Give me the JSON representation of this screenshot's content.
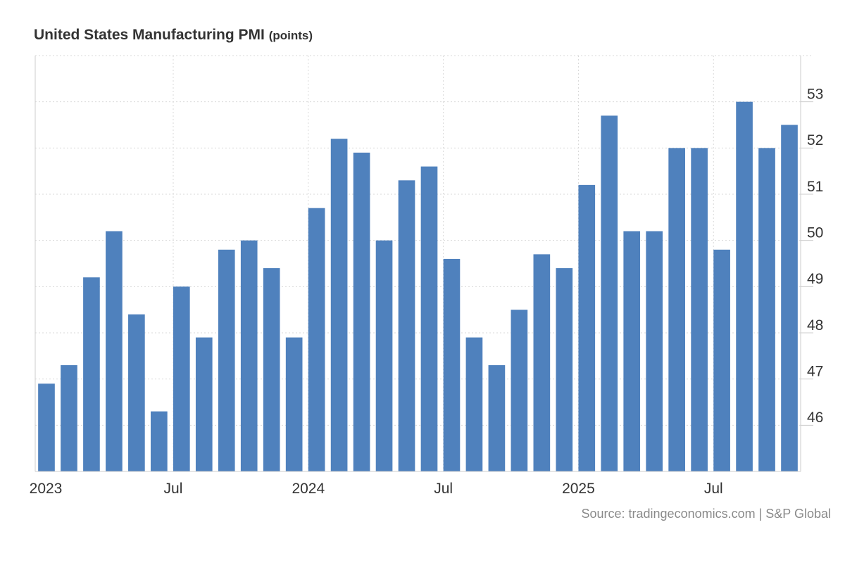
{
  "chart_data": {
    "type": "bar",
    "title": "United States Manufacturing PMI",
    "unit": "(points)",
    "source": "Source: tradingeconomics.com | S&P Global",
    "color": "#4f81bd",
    "categories": [
      "2023-01",
      "2023-02",
      "2023-03",
      "2023-04",
      "2023-05",
      "2023-06",
      "2023-07",
      "2023-08",
      "2023-09",
      "2023-10",
      "2023-11",
      "2023-12",
      "2024-01",
      "2024-02",
      "2024-03",
      "2024-04",
      "2024-05",
      "2024-06",
      "2024-07",
      "2024-08",
      "2024-09",
      "2024-10",
      "2024-11",
      "2024-12",
      "2025-01",
      "2025-02",
      "2025-03",
      "2025-04",
      "2025-05",
      "2025-06",
      "2025-07",
      "2025-08",
      "2025-09",
      "2025-10"
    ],
    "values": [
      46.9,
      47.3,
      49.2,
      50.2,
      48.4,
      46.3,
      49.0,
      47.9,
      49.8,
      50.0,
      49.4,
      47.9,
      50.7,
      52.2,
      51.9,
      50.0,
      51.3,
      51.6,
      49.6,
      47.9,
      47.3,
      48.5,
      49.7,
      49.4,
      51.2,
      52.7,
      50.2,
      50.2,
      52.0,
      52.0,
      49.8,
      53.0,
      52.0,
      52.5
    ],
    "ylim": [
      45,
      54
    ],
    "yticks": [
      46,
      47,
      48,
      49,
      50,
      51,
      52,
      53
    ],
    "xticks": [
      {
        "index": 0,
        "label": "2023"
      },
      {
        "index": 6,
        "label": "Jul"
      },
      {
        "index": 12,
        "label": "2024"
      },
      {
        "index": 18,
        "label": "Jul"
      },
      {
        "index": 24,
        "label": "2025"
      },
      {
        "index": 30,
        "label": "Jul"
      }
    ],
    "xlabel": "",
    "ylabel": "",
    "grid": true,
    "y_axis_side": "right"
  }
}
